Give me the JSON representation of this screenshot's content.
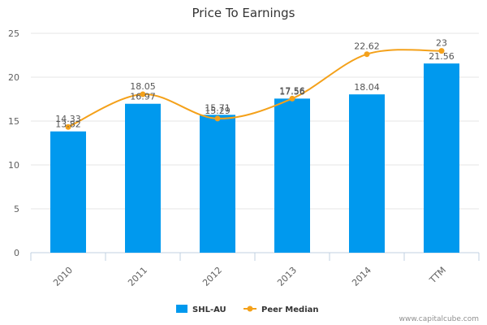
{
  "chart_data": {
    "type": "bar",
    "title": "Price To Earnings",
    "categories": [
      "2010",
      "2011",
      "2012",
      "2013",
      "2014",
      "TTM"
    ],
    "series": [
      {
        "name": "SHL-AU",
        "type": "bar",
        "color": "#0099ee",
        "values": [
          13.82,
          16.97,
          15.71,
          17.56,
          18.04,
          21.56
        ],
        "labels": [
          "13.82",
          "16.97",
          "15.71",
          "17.56",
          "18.04",
          "21.56"
        ]
      },
      {
        "name": "Peer Median",
        "type": "line",
        "color": "#f4a11a",
        "values": [
          14.33,
          18.05,
          15.29,
          17.56,
          22.62,
          23
        ],
        "labels": [
          "14.33",
          "18.05",
          "15.29",
          "17.56",
          "22.62",
          "23"
        ]
      }
    ],
    "ylim": [
      0,
      25
    ],
    "yticks": [
      "0",
      "5",
      "10",
      "15",
      "20",
      "25"
    ],
    "xlabel": "",
    "ylabel": "",
    "grid": true,
    "legend_position": "bottom-center"
  },
  "credit": "www.capitalcube.com"
}
